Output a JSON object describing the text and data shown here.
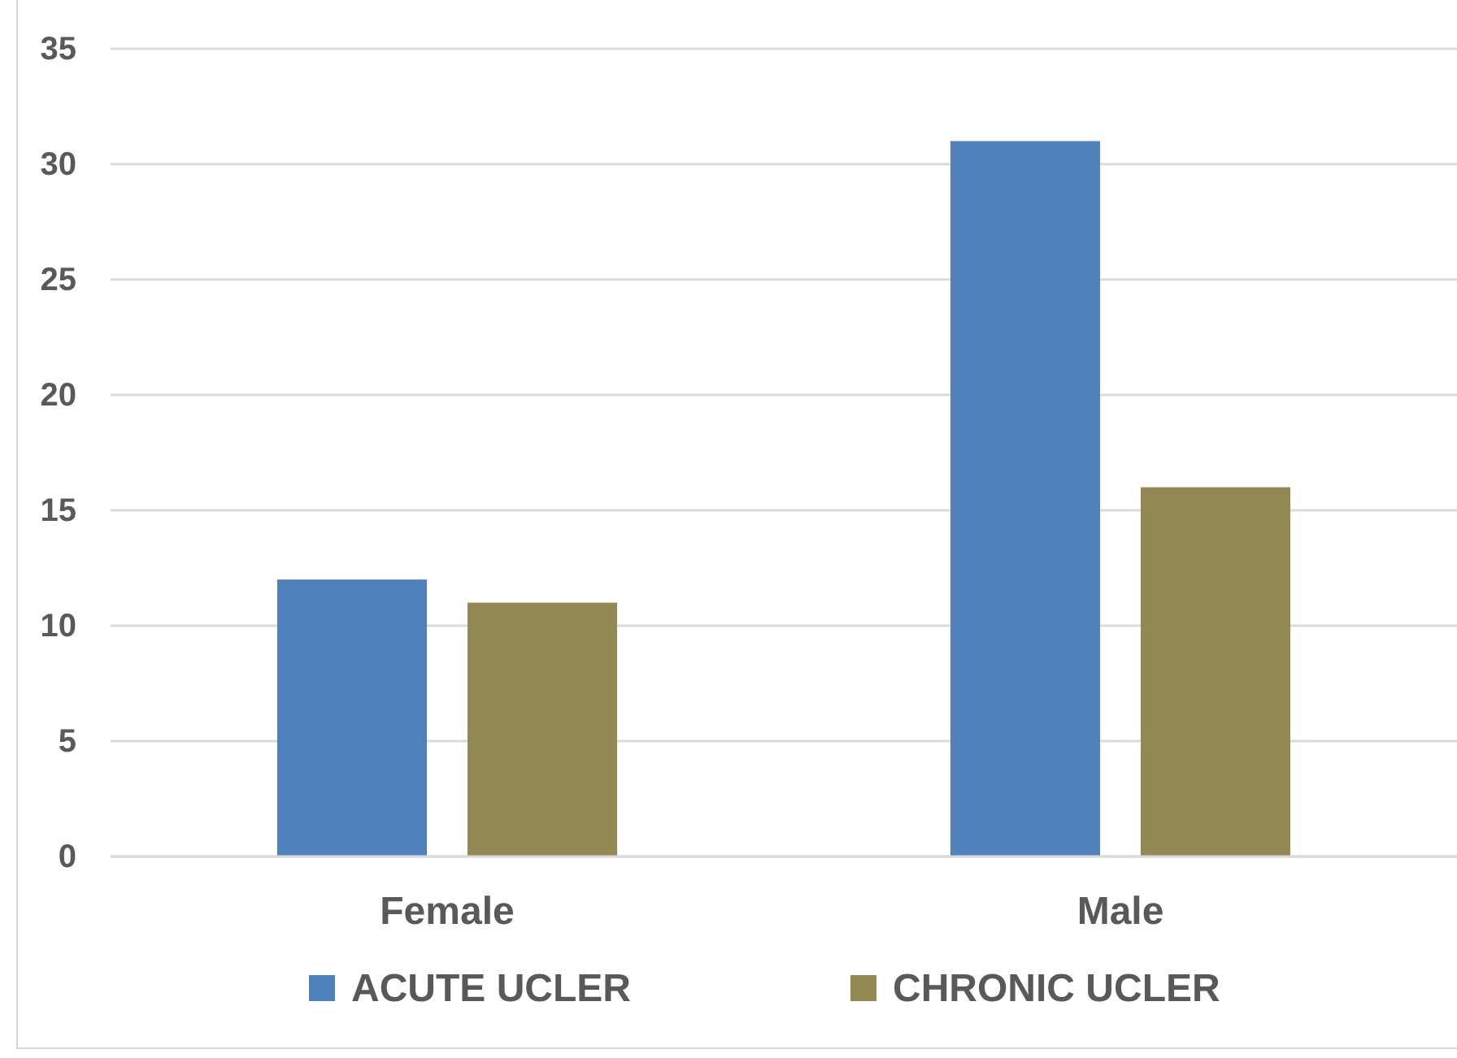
{
  "chart_data": {
    "type": "bar",
    "categories": [
      "Female",
      "Male"
    ],
    "series": [
      {
        "name": "ACUTE UCLER",
        "color": "#4f81bd",
        "values": [
          12,
          31
        ]
      },
      {
        "name": "CHRONIC UCLER",
        "color": "#938953",
        "values": [
          11,
          16
        ]
      }
    ],
    "ylim": [
      0,
      35
    ],
    "yticks": [
      0,
      5,
      10,
      15,
      20,
      25,
      30,
      35
    ],
    "grid": "y",
    "legend": "bottom"
  }
}
